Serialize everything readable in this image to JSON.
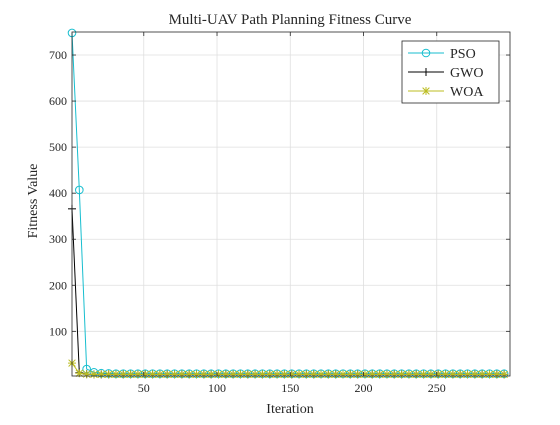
{
  "chart_data": {
    "type": "line",
    "title": "Multi-UAV Path Planning Fitness Curve",
    "xlabel": "Iteration",
    "ylabel": "Fitness Value",
    "xlim": [
      1,
      300
    ],
    "ylim": [
      3,
      750
    ],
    "xticks": [
      50,
      100,
      150,
      200,
      250
    ],
    "yticks": [
      100,
      200,
      300,
      400,
      500,
      600,
      700
    ],
    "grid": true,
    "legend_position": "top-right",
    "marker_interval": 5,
    "x": [
      1,
      6,
      11,
      16,
      21,
      26,
      31,
      36,
      41,
      46,
      51,
      56,
      61,
      66,
      71,
      76,
      81,
      86,
      91,
      96,
      101,
      106,
      111,
      116,
      121,
      126,
      131,
      136,
      141,
      146,
      151,
      156,
      161,
      166,
      171,
      176,
      181,
      186,
      191,
      196,
      201,
      206,
      211,
      216,
      221,
      226,
      231,
      236,
      241,
      246,
      251,
      256,
      261,
      266,
      271,
      276,
      281,
      286,
      291,
      296
    ],
    "series": [
      {
        "name": "PSO",
        "color": "#17becf",
        "marker": "circle",
        "values": [
          748,
          407,
          18,
          11,
          9,
          8.5,
          8,
          8,
          8,
          8,
          8,
          8,
          8,
          8,
          8,
          8,
          8,
          8,
          8,
          8,
          8,
          8,
          8,
          8,
          8,
          8,
          8,
          8,
          8,
          8,
          8,
          8,
          8,
          8,
          8,
          8,
          8,
          8,
          8,
          8,
          8,
          8,
          8,
          8,
          8,
          8,
          8,
          8,
          8,
          8,
          8,
          8,
          8,
          8,
          8,
          8,
          8,
          8,
          8,
          8
        ]
      },
      {
        "name": "GWO",
        "color": "#000000",
        "marker": "plus",
        "values": [
          366,
          10,
          7,
          6.5,
          6.5,
          6.5,
          6.5,
          6.5,
          6.5,
          6.5,
          6.5,
          6.5,
          6.5,
          6.5,
          6.5,
          6.5,
          6.5,
          6.5,
          6.5,
          6.5,
          6.5,
          6.5,
          6.5,
          6.5,
          6.5,
          6.5,
          6.5,
          6.5,
          6.5,
          6.5,
          6.5,
          6.5,
          6.5,
          6.5,
          6.5,
          6.5,
          6.5,
          6.5,
          6.5,
          6.5,
          6.5,
          6.5,
          6.5,
          6.5,
          6.5,
          6.5,
          6.5,
          6.5,
          6.5,
          6.5,
          6.5,
          6.5,
          6.5,
          6.5,
          6.5,
          6.5,
          6.5,
          6.5,
          6.5,
          6.5
        ]
      },
      {
        "name": "WOA",
        "color": "#bcbd22",
        "marker": "asterisk",
        "values": [
          31,
          9,
          7,
          6.5,
          6.5,
          6.5,
          6.5,
          6.5,
          6.5,
          6.5,
          6.5,
          6.5,
          6.5,
          6.5,
          6.5,
          6.5,
          6.5,
          6.5,
          6.5,
          6.5,
          6.5,
          6.5,
          6.5,
          6.5,
          6.5,
          6.5,
          6.5,
          6.5,
          6.5,
          6.5,
          6.5,
          6.5,
          6.5,
          6.5,
          6.5,
          6.5,
          6.5,
          6.5,
          6.5,
          6.5,
          6.5,
          6.5,
          6.5,
          6.5,
          6.5,
          6.5,
          6.5,
          6.5,
          6.5,
          6.5,
          6.5,
          6.5,
          6.5,
          6.5,
          6.5,
          6.5,
          6.5,
          6.5,
          6.5,
          6.5
        ]
      }
    ]
  }
}
